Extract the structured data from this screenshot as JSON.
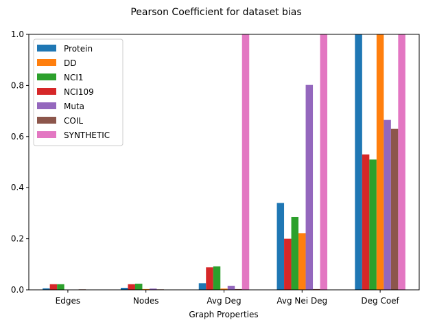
{
  "chart_data": {
    "type": "bar",
    "title": "Pearson Coefficient for dataset bias",
    "xlabel": "Graph Properties",
    "ylabel": "",
    "ylim": [
      0,
      1.0
    ],
    "yticks": [
      "0.0",
      "0.2",
      "0.4",
      "0.6",
      "0.8",
      "1.0"
    ],
    "categories": [
      "Edges",
      "Nodes",
      "Avg Deg",
      "Avg Nei Deg",
      "Deg Coef"
    ],
    "legend_position": "upper-left",
    "grid": false,
    "bar_order": [
      "Protein",
      "NCI109",
      "NCI1",
      "DD",
      "Muta",
      "COIL",
      "SYNTHETIC"
    ],
    "series": [
      {
        "name": "Protein",
        "color": "#1f77b4",
        "values": [
          0.006,
          0.008,
          0.026,
          0.34,
          1.0
        ]
      },
      {
        "name": "DD",
        "color": "#ff7f0e",
        "values": [
          0.0,
          0.003,
          0.005,
          0.222,
          1.0
        ]
      },
      {
        "name": "NCI1",
        "color": "#2ca02c",
        "values": [
          0.022,
          0.024,
          0.092,
          0.285,
          0.51
        ]
      },
      {
        "name": "NCI109",
        "color": "#d62728",
        "values": [
          0.022,
          0.022,
          0.088,
          0.2,
          0.53
        ]
      },
      {
        "name": "Muta",
        "color": "#9467bd",
        "values": [
          0.0,
          0.005,
          0.016,
          0.802,
          0.665
        ]
      },
      {
        "name": "COIL",
        "color": "#8c564b",
        "values": [
          0.002,
          0.002,
          0.003,
          0.003,
          0.63
        ]
      },
      {
        "name": "SYNTHETIC",
        "color": "#e377c2",
        "values": [
          0.0,
          0.0,
          1.0,
          1.0,
          1.0
        ]
      }
    ]
  }
}
